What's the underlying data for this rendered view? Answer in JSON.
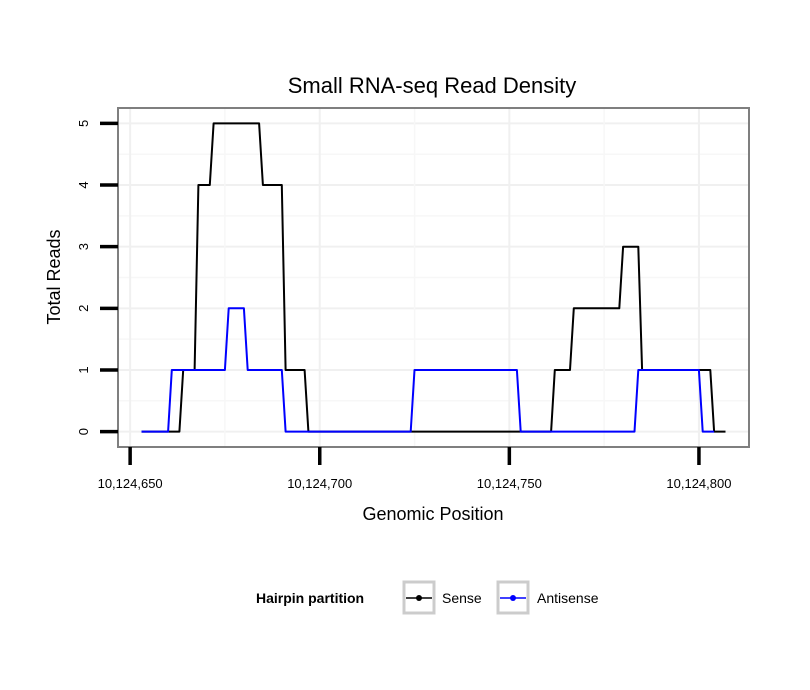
{
  "chart_data": {
    "type": "line",
    "title": "Small RNA-seq Read Density",
    "xlabel": "Genomic Position",
    "ylabel": "Total Reads",
    "xlim": [
      10124646.8,
      10124813.2
    ],
    "ylim": [
      -0.25,
      5.25
    ],
    "x_ticks": [
      10124650,
      10124700,
      10124750,
      10124800
    ],
    "x_tick_labels": [
      "10,124,650",
      "10,124,700",
      "10,124,750",
      "10,124,800"
    ],
    "y_ticks": [
      0,
      1,
      2,
      3,
      4,
      5
    ],
    "y_tick_labels": [
      "0",
      "1",
      "2",
      "3",
      "4",
      "5"
    ],
    "grid": true,
    "legend": {
      "title": "Hairpin partition",
      "position": "bottom"
    },
    "series": [
      {
        "name": "Sense",
        "color": "#000000",
        "points": [
          [
            10124653,
            0
          ],
          [
            10124663,
            0
          ],
          [
            10124664,
            1
          ],
          [
            10124667,
            1
          ],
          [
            10124668,
            4
          ],
          [
            10124671,
            4
          ],
          [
            10124672,
            5
          ],
          [
            10124684,
            5
          ],
          [
            10124685,
            4
          ],
          [
            10124690,
            4
          ],
          [
            10124691,
            1
          ],
          [
            10124696,
            1
          ],
          [
            10124697,
            0
          ],
          [
            10124761,
            0
          ],
          [
            10124762,
            1
          ],
          [
            10124766,
            1
          ],
          [
            10124767,
            2
          ],
          [
            10124779,
            2
          ],
          [
            10124780,
            3
          ],
          [
            10124784,
            3
          ],
          [
            10124785,
            1
          ],
          [
            10124803,
            1
          ],
          [
            10124804,
            0
          ],
          [
            10124807,
            0
          ]
        ]
      },
      {
        "name": "Antisense",
        "color": "#0000ff",
        "points": [
          [
            10124653,
            0
          ],
          [
            10124660,
            0
          ],
          [
            10124661,
            1
          ],
          [
            10124675,
            1
          ],
          [
            10124676,
            2
          ],
          [
            10124680,
            2
          ],
          [
            10124681,
            1
          ],
          [
            10124690,
            1
          ],
          [
            10124691,
            0
          ],
          [
            10124724,
            0
          ],
          [
            10124725,
            1
          ],
          [
            10124752,
            1
          ],
          [
            10124753,
            0
          ],
          [
            10124783,
            0
          ],
          [
            10124784,
            1
          ],
          [
            10124800,
            1
          ],
          [
            10124801,
            0
          ],
          [
            10124804,
            0
          ]
        ]
      }
    ]
  }
}
